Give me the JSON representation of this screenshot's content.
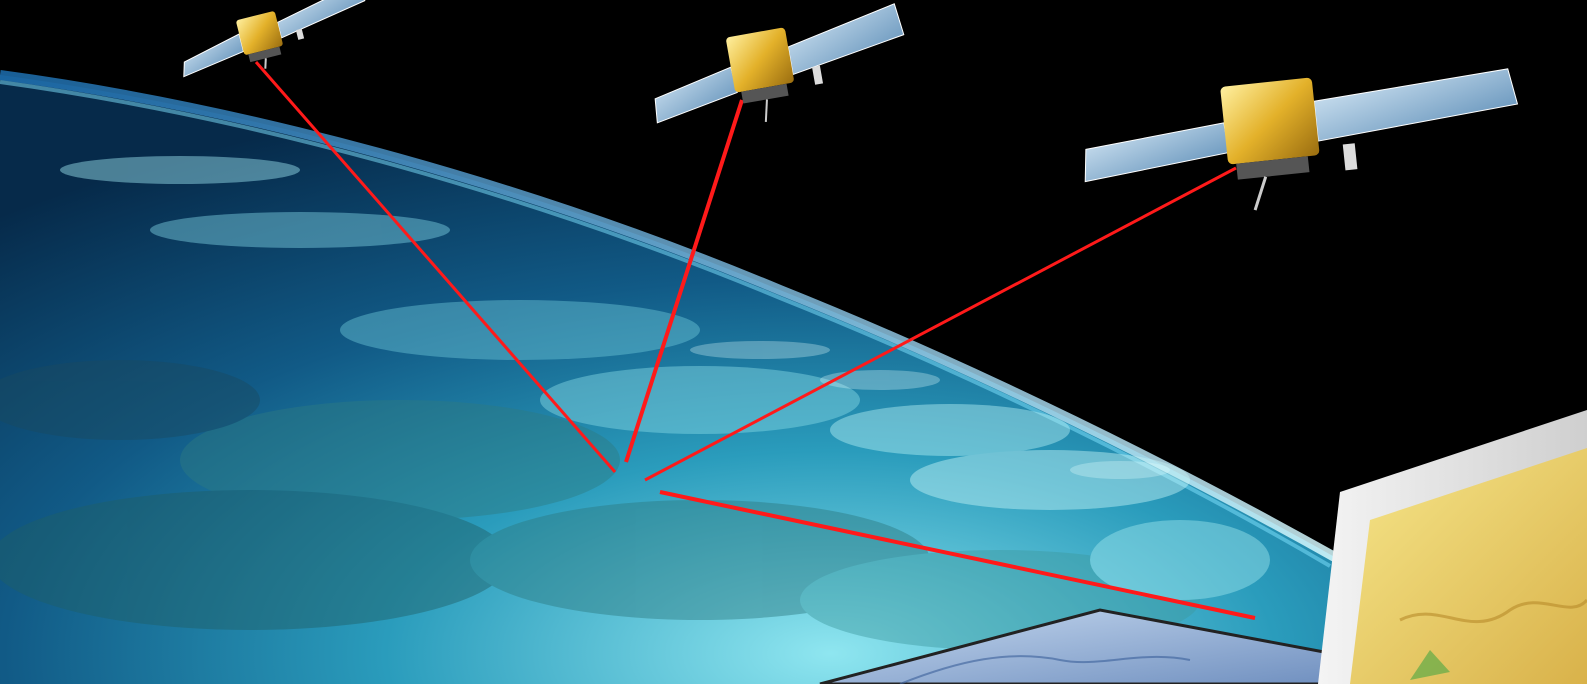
{
  "scene": {
    "description_free": true,
    "colors": {
      "space": "#000000",
      "ocean_deep": "#0b3a5e",
      "ocean_mid": "#1f7ea8",
      "ocean_light": "#5ed3ea",
      "atmosphere": "#9be8ff",
      "land": "#1f5a5a",
      "signal": "#ff1a1a",
      "satellite_body": "#e0b22a",
      "solar_panel": "#8fb8d8"
    },
    "satellites": [
      {
        "name": "satellite-1"
      },
      {
        "name": "satellite-2"
      },
      {
        "name": "satellite-3"
      }
    ],
    "signal_lines": 4
  }
}
